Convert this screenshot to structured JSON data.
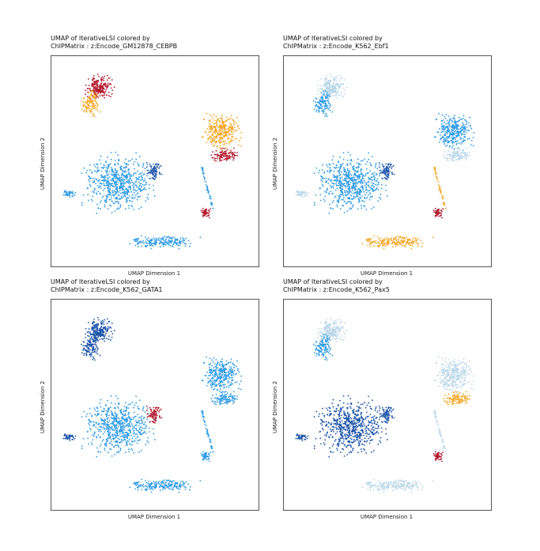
{
  "x_axis_label": "UMAP Dimension 1",
  "y_axis_label": "UMAP Dimension 2",
  "colors": {
    "low": "#1a52a8",
    "mid_low": "#2d9ae6",
    "mid": "#b8d6e8",
    "mid_high": "#f5a623",
    "high": "#b2182b"
  },
  "chart_data": [
    {
      "type": "scatter",
      "title_line1": "UMAP of IterativeLSI colored by",
      "title_line2": "ChIPMatrix : z:Encode_GM12878_CEBPB",
      "xlabel": "UMAP Dimension 1",
      "ylabel": "UMAP Dimension 2",
      "cluster_levels": {
        "top_left_blob": "high",
        "top_left_tip": "mid_high",
        "central_mass": "mid_low",
        "central_dark_spot": "low",
        "left_arm": "mid_low",
        "right_blob": "mid_high",
        "right_blob_lower": "high",
        "mid_right_dot": "high",
        "bottom_arc": "mid_low"
      }
    },
    {
      "type": "scatter",
      "title_line1": "UMAP of IterativeLSI colored by",
      "title_line2": "ChIPMatrix : z:Encode_K562_Ebf1",
      "xlabel": "UMAP Dimension 1",
      "ylabel": "UMAP Dimension 2",
      "cluster_levels": {
        "top_left_blob": "mid",
        "top_left_tip": "mid_low",
        "central_mass": "mid_low",
        "central_dark_spot": "low",
        "left_arm": "mid",
        "right_blob": "mid_low",
        "right_blob_lower": "mid",
        "mid_right_dot": "high",
        "bottom_arc": "mid_high"
      }
    },
    {
      "type": "scatter",
      "title_line1": "UMAP of IterativeLSI colored by",
      "title_line2": "ChIPMatrix : z:Encode_K562_GATA1",
      "xlabel": "UMAP Dimension 1",
      "ylabel": "UMAP Dimension 2",
      "cluster_levels": {
        "top_left_blob": "low",
        "top_left_tip": "low",
        "central_mass": "mid_low",
        "central_dark_spot": "high",
        "left_arm": "low",
        "right_blob": "mid_low",
        "right_blob_lower": "mid_low",
        "mid_right_dot": "mid_low",
        "bottom_arc": "mid_low"
      }
    },
    {
      "type": "scatter",
      "title_line1": "UMAP of IterativeLSI colored by",
      "title_line2": "ChIPMatrix : z:Encode_K562_Pax5",
      "xlabel": "UMAP Dimension 1",
      "ylabel": "UMAP Dimension 2",
      "cluster_levels": {
        "top_left_blob": "mid",
        "top_left_tip": "mid_low",
        "central_mass": "low",
        "central_dark_spot": "low",
        "left_arm": "low",
        "right_blob": "mid",
        "right_blob_lower": "mid_high",
        "mid_right_dot": "high",
        "bottom_arc": "mid"
      }
    }
  ]
}
